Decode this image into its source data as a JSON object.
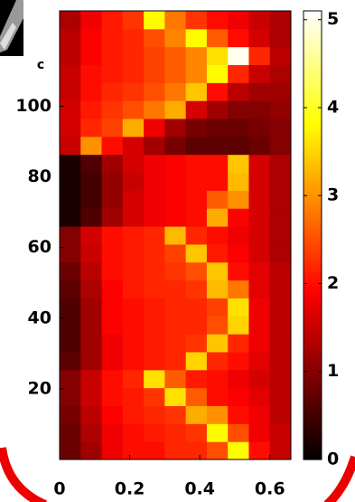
{
  "chart_data": {
    "type": "heatmap",
    "panel_label": "c",
    "colormap": "hot",
    "xlim": [
      0,
      0.66
    ],
    "xticks": [
      0,
      0.2,
      0.4,
      0.6
    ],
    "ylim": [
      0,
      127
    ],
    "yticks": [
      20,
      40,
      60,
      80,
      100
    ],
    "clim": [
      0,
      5.1
    ],
    "cticks": [
      0,
      1,
      2,
      3,
      4,
      5
    ],
    "z": [
      [
        0.8,
        1.2,
        1.8,
        2,
        2,
        2.2,
        2.2,
        2.5,
        3.8,
        2,
        1.5
      ],
      [
        0.8,
        1.3,
        1.8,
        2,
        2.1,
        2.2,
        2.3,
        3.8,
        2.5,
        1.8,
        1.5
      ],
      [
        0.9,
        1.4,
        1.9,
        2.1,
        2.2,
        2.3,
        3.2,
        3,
        2,
        1.8,
        1.4
      ],
      [
        1,
        1.5,
        2,
        2.1,
        2.3,
        3.6,
        2.6,
        2,
        1.9,
        1.7,
        1.4
      ],
      [
        1,
        1.5,
        2,
        2.2,
        3.6,
        2.6,
        2.1,
        2,
        1.8,
        1.6,
        1.4
      ],
      [
        0.7,
        1.2,
        1.8,
        2,
        2.1,
        2.2,
        3.5,
        2.2,
        2,
        1.7,
        1.4
      ],
      [
        0.6,
        1.2,
        1.8,
        2,
        2.1,
        2.2,
        2.3,
        3.4,
        2.2,
        1.8,
        1.4
      ],
      [
        0.6,
        1.2,
        1.9,
        2,
        2.1,
        2.2,
        2.2,
        2.5,
        3.5,
        1.8,
        1.4
      ],
      [
        0.6,
        1.2,
        1.9,
        2,
        2.1,
        2.2,
        2.2,
        2.4,
        3.6,
        1.8,
        1.4
      ],
      [
        0.7,
        1.3,
        1.9,
        2.1,
        2.2,
        2.2,
        2.3,
        3.3,
        2.8,
        1.7,
        1.4
      ],
      [
        0.8,
        1.4,
        2,
        2.1,
        2.2,
        2.3,
        2.5,
        3.4,
        2,
        1.7,
        1.4
      ],
      [
        1,
        1.5,
        2,
        2.1,
        2.2,
        2.4,
        3.4,
        2.1,
        1.9,
        1.6,
        1.3
      ],
      [
        1,
        1.6,
        2,
        2.1,
        2.2,
        3.3,
        2.2,
        2,
        1.8,
        1.6,
        1.3
      ],
      [
        0.2,
        0.6,
        1.2,
        1.6,
        1.8,
        1.9,
        2,
        3.2,
        1.9,
        1.6,
        1.3
      ],
      [
        0.2,
        0.5,
        1.1,
        1.6,
        1.8,
        1.9,
        2,
        2.6,
        3,
        1.6,
        1.3
      ],
      [
        0.2,
        0.5,
        1.1,
        1.5,
        1.8,
        1.9,
        2,
        2,
        3.3,
        1.6,
        1.3
      ],
      [
        0.2,
        0.6,
        1.2,
        1.6,
        1.8,
        1.9,
        2,
        2,
        3.4,
        1.6,
        1.3
      ],
      [
        1.5,
        3,
        2,
        1.6,
        1.2,
        0.9,
        0.7,
        0.7,
        0.7,
        0.8,
        1
      ],
      [
        1.6,
        2.2,
        2.4,
        3.2,
        1.8,
        1.2,
        0.9,
        0.8,
        0.8,
        0.9,
        1
      ],
      [
        1.6,
        2.1,
        2.3,
        2.5,
        2.8,
        3.2,
        1.6,
        1.2,
        1,
        1,
        1.1
      ],
      [
        1.5,
        2,
        2.2,
        2.3,
        2.5,
        2.8,
        3.4,
        2,
        1.4,
        1.2,
        1.2
      ],
      [
        1.5,
        2,
        2.1,
        2.2,
        2.4,
        2.6,
        2.9,
        3.8,
        2.2,
        1.5,
        1.3
      ],
      [
        1.4,
        1.9,
        2.1,
        2.2,
        2.4,
        2.6,
        2.9,
        3.6,
        5,
        2.2,
        1.4
      ],
      [
        1.4,
        1.9,
        2.1,
        2.2,
        2.5,
        2.9,
        3.8,
        2.6,
        2,
        1.6,
        1.3
      ],
      [
        1.3,
        1.8,
        2.1,
        2.3,
        3.8,
        2.8,
        2.3,
        2,
        1.8,
        1.5,
        1.3
      ]
    ]
  }
}
